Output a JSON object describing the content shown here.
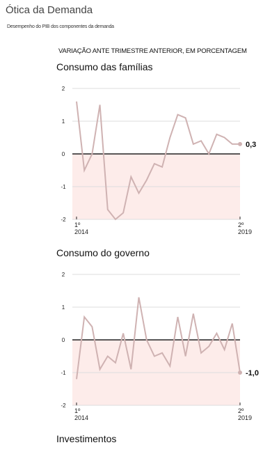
{
  "header": {
    "title": "Ótica da Demanda",
    "subtitle": "Desempenho do PIB dos componentes da demanda",
    "note": "VARIAÇÃO ANTE TRIMESTRE ANTERIOR, EM PORCENTAGEM"
  },
  "chart_data": [
    {
      "type": "line",
      "title": "Consumo das famílias",
      "categories": [
        "1º\n2014",
        null,
        null,
        null,
        null,
        null,
        null,
        null,
        null,
        null,
        null,
        null,
        null,
        null,
        null,
        null,
        null,
        null,
        null,
        null,
        null,
        "2º\n2019"
      ],
      "series": [
        {
          "name": "Consumo das famílias",
          "color": "#cfb2b2",
          "values": [
            1.6,
            -0.5,
            0,
            1.5,
            -1.7,
            -2.0,
            -1.8,
            -0.7,
            -1.2,
            -0.8,
            -0.3,
            -0.4,
            0.5,
            1.2,
            1.1,
            0.3,
            0.4,
            0,
            0.6,
            0.5,
            0.3,
            0.3
          ],
          "value_labels": [
            null,
            null,
            null,
            null,
            null,
            null,
            null,
            null,
            null,
            null,
            null,
            null,
            null,
            null,
            null,
            null,
            null,
            null,
            null,
            null,
            null,
            "0,3"
          ]
        }
      ],
      "ylim": [
        -2,
        2
      ],
      "yticks": [
        -2,
        -1,
        0,
        1,
        2
      ],
      "grid": true,
      "negative_fill": "#fdecea"
    },
    {
      "type": "line",
      "title": "Consumo do governo",
      "categories": [
        "1º\n2014",
        null,
        null,
        null,
        null,
        null,
        null,
        null,
        null,
        null,
        null,
        null,
        null,
        null,
        null,
        null,
        null,
        null,
        null,
        null,
        null,
        "2º\n2019"
      ],
      "series": [
        {
          "name": "Consumo do governo",
          "color": "#cfb2b2",
          "values": [
            -1.2,
            0.7,
            0.4,
            -0.9,
            -0.5,
            -0.7,
            0.2,
            -0.9,
            1.3,
            0,
            -0.5,
            -0.4,
            -0.8,
            0.7,
            -0.5,
            0.8,
            -0.4,
            -0.2,
            0.2,
            -0.3,
            0.5,
            -1.0
          ],
          "value_labels": [
            null,
            null,
            null,
            null,
            null,
            null,
            null,
            null,
            null,
            null,
            null,
            null,
            null,
            null,
            null,
            null,
            null,
            null,
            null,
            null,
            null,
            "-1,0"
          ]
        }
      ],
      "ylim": [
        -2,
        2
      ],
      "yticks": [
        -2,
        -1,
        0,
        1,
        2
      ],
      "grid": true,
      "negative_fill": "#fdecea"
    },
    {
      "type": "line",
      "title": "Investimentos"
    }
  ]
}
